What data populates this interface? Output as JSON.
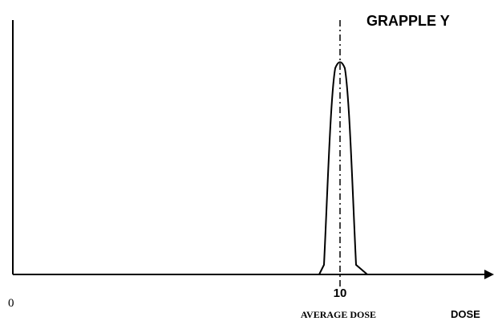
{
  "title": "GRAPPLE Y",
  "x_axis": {
    "origin_label": "0",
    "mark_label": "10",
    "mark_caption": "AVERAGE DOSE",
    "axis_label": "DOSE"
  }
}
